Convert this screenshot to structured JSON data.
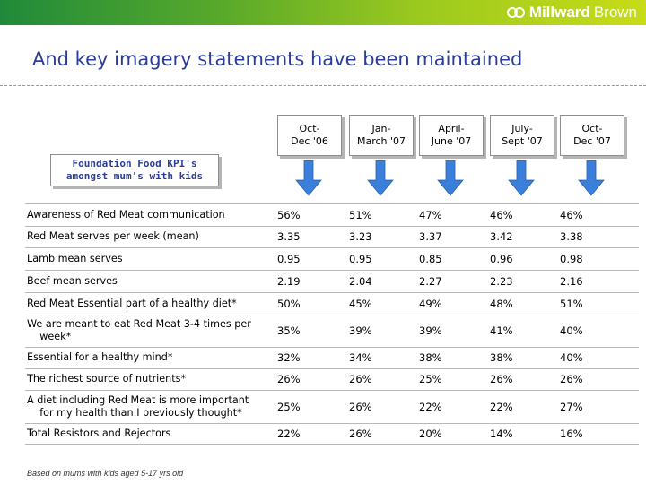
{
  "brand": {
    "name_bold": "Millward",
    "name_light": "Brown"
  },
  "title": "And key imagery statements have been maintained",
  "kpi_header": "Foundation Food KPI's\namongst mum's with kids",
  "periods": [
    "Oct-\nDec '06",
    "Jan-\nMarch '07",
    "April-\nJune '07",
    "July-\nSept '07",
    "Oct-\nDec '07"
  ],
  "rows": [
    {
      "label": "Awareness of Red Meat communication",
      "values": [
        "56%",
        "51%",
        "47%",
        "46%",
        "46%"
      ]
    },
    {
      "label": "Red Meat serves per week (mean)",
      "values": [
        "3.35",
        "3.23",
        "3.37",
        "3.42",
        "3.38"
      ]
    },
    {
      "label": "Lamb mean serves",
      "values": [
        "0.95",
        "0.95",
        "0.85",
        "0.96",
        "0.98"
      ]
    },
    {
      "label": "Beef mean serves",
      "values": [
        "2.19",
        "2.04",
        "2.27",
        "2.23",
        "2.16"
      ]
    },
    {
      "label": "Red Meat Essential part of a healthy diet*",
      "values": [
        "50%",
        "45%",
        "49%",
        "48%",
        "51%"
      ]
    },
    {
      "label": "We are meant to eat Red Meat 3-4 times per\n    week*",
      "values": [
        "35%",
        "39%",
        "39%",
        "41%",
        "40%"
      ]
    },
    {
      "label": "Essential for a healthy mind*",
      "values": [
        "32%",
        "34%",
        "38%",
        "38%",
        "40%"
      ]
    },
    {
      "label": "The richest source of nutrients*",
      "values": [
        "26%",
        "26%",
        "25%",
        "26%",
        "26%"
      ]
    },
    {
      "label": "A diet including Red Meat is more important\n    for my health than I previously thought*",
      "values": [
        "25%",
        "26%",
        "22%",
        "22%",
        "27%"
      ]
    },
    {
      "label": "Total Resistors and Rejectors",
      "values": [
        "22%",
        "26%",
        "20%",
        "14%",
        "16%"
      ]
    }
  ],
  "footnote": "Based on mums with kids aged 5-17 yrs old",
  "colors": {
    "title": "#2b3d96",
    "arrow": "#3a7fd9",
    "rule": "#b9b9b9"
  }
}
